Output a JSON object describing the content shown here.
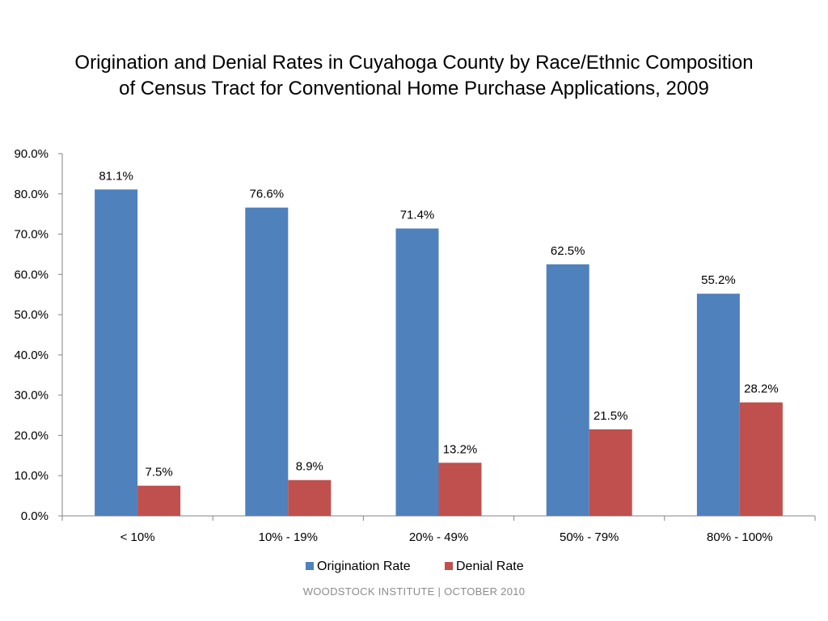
{
  "chart_data": {
    "type": "bar",
    "title_lines": [
      "Origination and Denial Rates in Cuyahoga County by Race/Ethnic Composition",
      "of Census Tract for Conventional Home Purchase Applications, 2009"
    ],
    "categories": [
      "< 10%",
      "10% - 19%",
      "20% - 49%",
      "50% - 79%",
      "80% - 100%"
    ],
    "series": [
      {
        "name": "Origination Rate",
        "values": [
          81.1,
          76.6,
          71.4,
          62.5,
          55.2
        ],
        "labels": [
          "81.1%",
          "76.6%",
          "71.4%",
          "62.5%",
          "55.2%"
        ],
        "color": "#4f81bd"
      },
      {
        "name": "Denial Rate",
        "values": [
          7.5,
          8.9,
          13.2,
          21.5,
          28.2
        ],
        "labels": [
          "7.5%",
          "8.9%",
          "13.2%",
          "21.5%",
          "28.2%"
        ],
        "color": "#c0504d"
      }
    ],
    "ylim": [
      0,
      90
    ],
    "y_ticks": [
      "0.0%",
      "10.0%",
      "20.0%",
      "30.0%",
      "40.0%",
      "50.0%",
      "60.0%",
      "70.0%",
      "80.0%",
      "90.0%"
    ],
    "xlabel": "",
    "ylabel": "",
    "grid": false,
    "legend_position": "bottom"
  },
  "footer": {
    "text": "WOODSTOCK INSTITUTE  |  OCTOBER 2010"
  }
}
